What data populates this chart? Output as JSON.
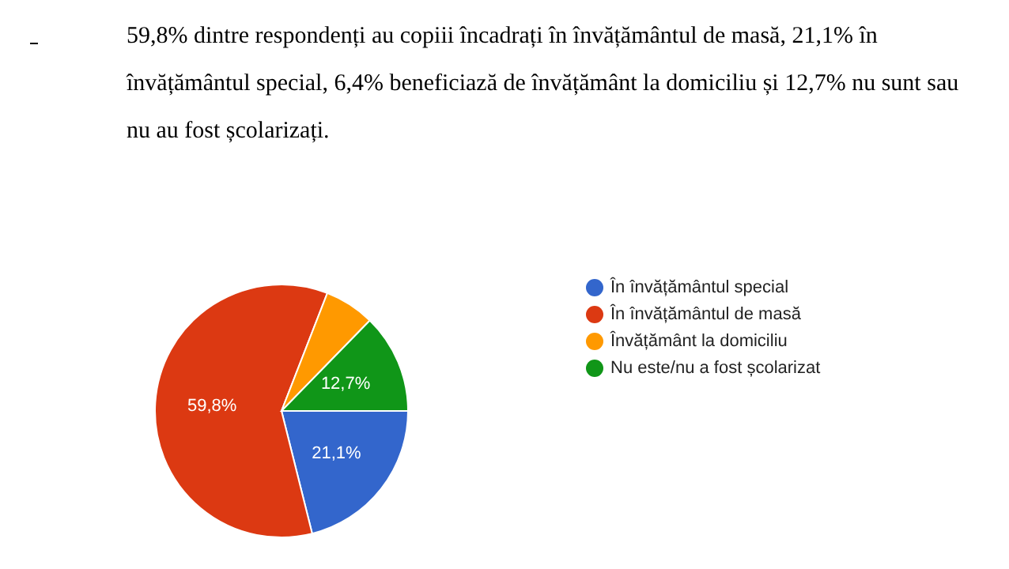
{
  "chart_data": {
    "type": "pie",
    "title": "59,8% dintre respondenți au copiii încadrați în învățământul de masă, 21,1% în învățământul special, 6,4% beneficiază de învățământ la domiciliu și 12,7% nu sunt sau nu au fost școlarizați.",
    "categories": [
      "În învățământul special",
      "În învățământul de masă",
      "Învățământ la domiciliu",
      "Nu este/nu a fost școlarizat"
    ],
    "values": [
      21.1,
      59.8,
      6.4,
      12.7
    ],
    "colors": [
      "#3366cc",
      "#dc3912",
      "#ff9900",
      "#109618"
    ],
    "value_labels": [
      "21,1%",
      "59,8%",
      null,
      "12,7%"
    ],
    "legend": "right"
  }
}
